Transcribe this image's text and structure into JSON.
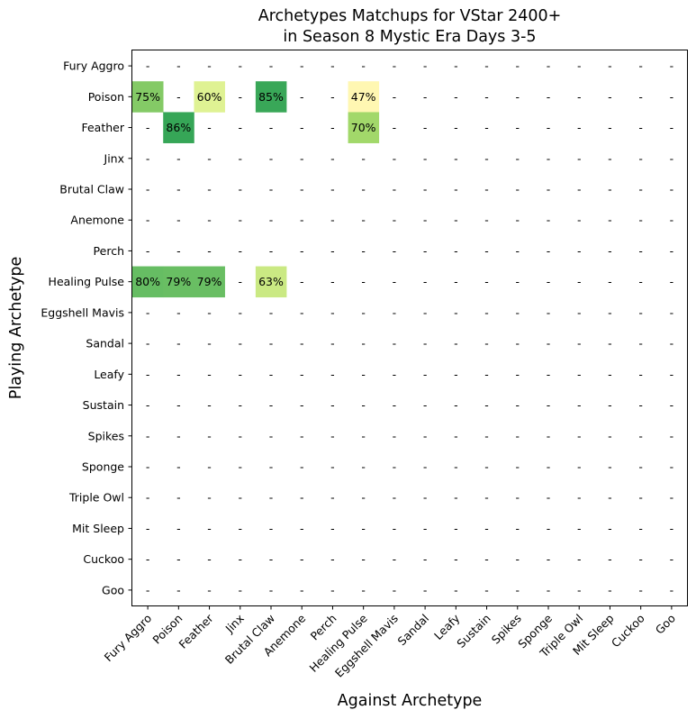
{
  "chart_data": {
    "type": "heatmap",
    "title": [
      "Archetypes Matchups for VStar 2400+",
      "in Season 8 Mystic Era Days 3-5"
    ],
    "xlabel": "Against Archetype",
    "ylabel": "Playing Archetype",
    "empty_label": "-",
    "colormap": "RdYlGn",
    "x_categories": [
      "Fury Aggro",
      "Poison",
      "Feather",
      "Jinx",
      "Brutal Claw",
      "Anemone",
      "Perch",
      "Healing Pulse",
      "Eggshell Mavis",
      "Sandal",
      "Leafy",
      "Sustain",
      "Spikes",
      "Sponge",
      "Triple Owl",
      "Mit Sleep",
      "Cuckoo",
      "Goo"
    ],
    "y_categories": [
      "Fury Aggro",
      "Poison",
      "Feather",
      "Jinx",
      "Brutal Claw",
      "Anemone",
      "Perch",
      "Healing Pulse",
      "Eggshell Mavis",
      "Sandal",
      "Leafy",
      "Sustain",
      "Spikes",
      "Sponge",
      "Triple Owl",
      "Mit Sleep",
      "Cuckoo",
      "Goo"
    ],
    "cells": [
      {
        "row": "Poison",
        "col": "Fury Aggro",
        "value": 75,
        "label": "75%",
        "color": "#84ca66"
      },
      {
        "row": "Poison",
        "col": "Feather",
        "value": 60,
        "label": "60%",
        "color": "#dff293"
      },
      {
        "row": "Poison",
        "col": "Brutal Claw",
        "value": 85,
        "label": "85%",
        "color": "#39a758"
      },
      {
        "row": "Poison",
        "col": "Healing Pulse",
        "value": 47,
        "label": "47%",
        "color": "#fff7b2"
      },
      {
        "row": "Feather",
        "col": "Poison",
        "value": 86,
        "label": "86%",
        "color": "#36a657"
      },
      {
        "row": "Feather",
        "col": "Healing Pulse",
        "value": 70,
        "label": "70%",
        "color": "#a2d86a"
      },
      {
        "row": "Healing Pulse",
        "col": "Fury Aggro",
        "value": 80,
        "label": "80%",
        "color": "#66bd63"
      },
      {
        "row": "Healing Pulse",
        "col": "Poison",
        "value": 79,
        "label": "79%",
        "color": "#69be63"
      },
      {
        "row": "Healing Pulse",
        "col": "Feather",
        "value": 79,
        "label": "79%",
        "color": "#69be63"
      },
      {
        "row": "Healing Pulse",
        "col": "Brutal Claw",
        "value": 63,
        "label": "63%",
        "color": "#cae983"
      }
    ]
  }
}
